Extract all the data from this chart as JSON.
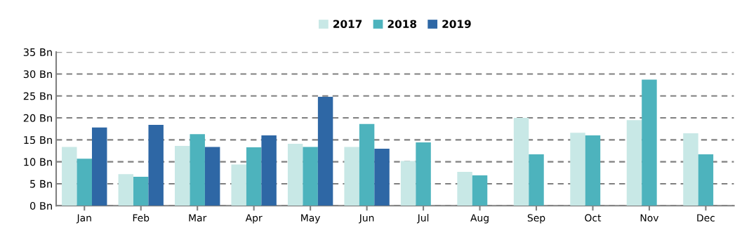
{
  "chart_data": {
    "type": "bar",
    "categories": [
      "Jan",
      "Feb",
      "Mar",
      "Apr",
      "May",
      "Jun",
      "Jul",
      "Aug",
      "Sep",
      "Oct",
      "Nov",
      "Dec"
    ],
    "series": [
      {
        "name": "2017",
        "color": "#c8e8e6",
        "values": [
          13.4,
          7.2,
          13.6,
          9.4,
          14.1,
          13.4,
          10.2,
          7.7,
          20.0,
          16.6,
          19.5,
          16.5
        ]
      },
      {
        "name": "2018",
        "color": "#4db3bd",
        "values": [
          10.7,
          6.6,
          16.3,
          13.3,
          13.4,
          18.6,
          14.4,
          6.9,
          11.7,
          16.0,
          28.7,
          11.7
        ]
      },
      {
        "name": "2019",
        "color": "#2e67a5",
        "values": [
          17.8,
          18.4,
          13.4,
          16.0,
          24.8,
          13.0,
          null,
          null,
          null,
          null,
          null,
          null
        ]
      }
    ],
    "ylim": [
      0,
      35
    ],
    "yticks": [
      {
        "value": 0,
        "label": "0 Bn"
      },
      {
        "value": 5,
        "label": "5 Bn"
      },
      {
        "value": 10,
        "label": "10 Bn"
      },
      {
        "value": 15,
        "label": "15 Bn"
      },
      {
        "value": 20,
        "label": "20 Bn"
      },
      {
        "value": 25,
        "label": "25 Bn"
      },
      {
        "value": 30,
        "label": "30 Bn"
      },
      {
        "value": 35,
        "label": "35 Bn"
      }
    ],
    "grid": "y",
    "legend": "top",
    "line_style": "dashed"
  }
}
